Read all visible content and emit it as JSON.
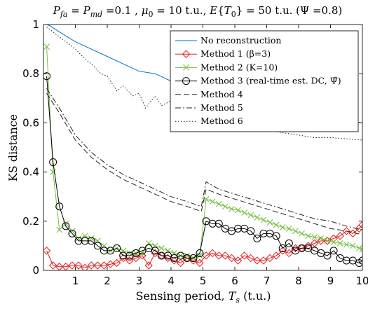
{
  "chart_data": {
    "type": "line",
    "title": "P_fa = P_md =0.1 , μ_0 = 10 t.u., E{T_0} = 50 t.u. (Ψ =0.8)",
    "xlabel": "Sensing period, T_s (t.u.)",
    "ylabel": "KS distance",
    "xlim": [
      0,
      10
    ],
    "ylim": [
      0,
      1
    ],
    "xticks": [
      1,
      2,
      3,
      4,
      5,
      6,
      7,
      8,
      9,
      10
    ],
    "xtick_labels": [
      "1",
      "2",
      "3",
      "4",
      "5",
      "6",
      "7",
      "8",
      "9",
      "10"
    ],
    "yticks": [
      0,
      0.2,
      0.4,
      0.6,
      0.8,
      1
    ],
    "ytick_labels": [
      "0",
      "0.2",
      "0.4",
      "0.6",
      "0.8",
      "1"
    ],
    "grid": false,
    "legend_position": "top-right",
    "series": [
      {
        "name": "No reconstruction",
        "color": "#0072BD",
        "dash": "solid",
        "marker": "none",
        "x": [
          0.1,
          0.2,
          0.5,
          1.0,
          1.5,
          2.0,
          2.5,
          3.0,
          3.5,
          4.0,
          4.2,
          4.5,
          5.0,
          5.5,
          6.0,
          6.5,
          7.0,
          7.5,
          8.0,
          8.5,
          9.0,
          9.5,
          10.0
        ],
        "y": [
          1.0,
          0.995,
          0.97,
          0.93,
          0.9,
          0.87,
          0.84,
          0.81,
          0.8,
          0.77,
          0.76,
          0.73,
          0.7,
          0.69,
          0.68,
          0.67,
          0.66,
          0.65,
          0.64,
          0.63,
          0.62,
          0.61,
          0.6
        ]
      },
      {
        "name": "Method 1 (β=3)",
        "color": "#E31A1C",
        "dash": "solid",
        "marker": "diamond",
        "x": [
          0.1,
          0.3,
          0.5,
          0.7,
          0.9,
          1.1,
          1.3,
          1.5,
          1.7,
          1.9,
          2.1,
          2.3,
          2.5,
          2.7,
          2.9,
          3.1,
          3.3,
          3.5,
          3.7,
          3.9,
          4.1,
          4.3,
          4.5,
          4.7,
          4.9,
          5.1,
          5.3,
          5.5,
          5.7,
          5.9,
          6.1,
          6.3,
          6.5,
          6.7,
          6.9,
          7.1,
          7.3,
          7.5,
          7.7,
          7.9,
          8.1,
          8.3,
          8.5,
          8.7,
          8.9,
          9.1,
          9.3,
          9.5,
          9.7,
          9.9,
          10.0
        ],
        "y": [
          0.08,
          0.02,
          0.015,
          0.015,
          0.02,
          0.02,
          0.01,
          0.02,
          0.02,
          0.02,
          0.025,
          0.03,
          0.05,
          0.04,
          0.05,
          0.06,
          0.02,
          0.07,
          0.06,
          0.05,
          0.04,
          0.03,
          0.05,
          0.04,
          0.03,
          0.06,
          0.07,
          0.06,
          0.06,
          0.05,
          0.04,
          0.06,
          0.05,
          0.04,
          0.04,
          0.05,
          0.06,
          0.08,
          0.07,
          0.09,
          0.09,
          0.1,
          0.11,
          0.12,
          0.12,
          0.13,
          0.14,
          0.16,
          0.15,
          0.17,
          0.185
        ]
      },
      {
        "name": "Method 2 (K=10)",
        "color": "#77C043",
        "dash": "solid",
        "marker": "x",
        "x": [
          0.1,
          0.3,
          0.5,
          0.7,
          0.9,
          1.1,
          1.3,
          1.5,
          1.7,
          1.9,
          2.1,
          2.3,
          2.5,
          2.7,
          2.9,
          3.1,
          3.3,
          3.5,
          3.7,
          3.9,
          4.1,
          4.3,
          4.5,
          4.7,
          4.9,
          5.1,
          5.3,
          5.5,
          5.7,
          5.9,
          6.1,
          6.3,
          6.5,
          6.7,
          6.9,
          7.1,
          7.3,
          7.5,
          7.7,
          7.9,
          8.1,
          8.3,
          8.5,
          8.7,
          8.9,
          9.1,
          9.3,
          9.5,
          9.7,
          9.9,
          10.0
        ],
        "y": [
          0.91,
          0.4,
          0.165,
          0.19,
          0.16,
          0.13,
          0.14,
          0.13,
          0.12,
          0.1,
          0.08,
          0.09,
          0.08,
          0.07,
          0.07,
          0.07,
          0.11,
          0.1,
          0.09,
          0.08,
          0.07,
          0.06,
          0.06,
          0.05,
          0.06,
          0.29,
          0.28,
          0.27,
          0.26,
          0.25,
          0.245,
          0.235,
          0.225,
          0.215,
          0.205,
          0.195,
          0.185,
          0.175,
          0.17,
          0.16,
          0.15,
          0.14,
          0.135,
          0.13,
          0.12,
          0.115,
          0.11,
          0.105,
          0.1,
          0.09,
          0.085
        ]
      },
      {
        "name": "Method 3 (real-time est. DC, Ψ̂)",
        "color": "#000000",
        "dash": "solid",
        "marker": "circle",
        "x": [
          0.1,
          0.3,
          0.5,
          0.7,
          0.9,
          1.1,
          1.3,
          1.5,
          1.7,
          1.9,
          2.1,
          2.3,
          2.5,
          2.7,
          2.9,
          3.1,
          3.3,
          3.5,
          3.7,
          3.9,
          4.1,
          4.3,
          4.5,
          4.7,
          4.9,
          5.1,
          5.3,
          5.5,
          5.7,
          5.9,
          6.1,
          6.3,
          6.5,
          6.7,
          6.9,
          7.1,
          7.3,
          7.5,
          7.7,
          7.9,
          8.1,
          8.3,
          8.5,
          8.7,
          8.9,
          9.1,
          9.3,
          9.5,
          9.7,
          9.9,
          10.0
        ],
        "y": [
          0.79,
          0.44,
          0.26,
          0.18,
          0.15,
          0.12,
          0.12,
          0.12,
          0.1,
          0.08,
          0.08,
          0.09,
          0.06,
          0.06,
          0.07,
          0.08,
          0.09,
          0.08,
          0.06,
          0.06,
          0.05,
          0.06,
          0.05,
          0.05,
          0.07,
          0.2,
          0.19,
          0.19,
          0.17,
          0.16,
          0.17,
          0.17,
          0.16,
          0.13,
          0.15,
          0.15,
          0.14,
          0.09,
          0.11,
          0.08,
          0.09,
          0.09,
          0.08,
          0.07,
          0.06,
          0.08,
          0.05,
          0.04,
          0.04,
          0.03,
          0.04
        ]
      },
      {
        "name": "Method 4",
        "color": "#222222",
        "dash": "dashed",
        "marker": "none",
        "x": [
          0.1,
          0.5,
          1.0,
          1.5,
          2.0,
          2.5,
          3.0,
          3.5,
          4.0,
          4.5,
          4.95,
          5.1,
          5.5,
          6.0,
          6.5,
          7.0,
          7.5,
          8.0,
          8.5,
          9.0,
          9.5,
          10.0
        ],
        "y": [
          0.72,
          0.64,
          0.53,
          0.46,
          0.41,
          0.37,
          0.34,
          0.31,
          0.28,
          0.26,
          0.24,
          0.33,
          0.31,
          0.29,
          0.27,
          0.25,
          0.23,
          0.21,
          0.19,
          0.17,
          0.16,
          0.145
        ]
      },
      {
        "name": "Method 5",
        "color": "#222222",
        "dash": "dashdot",
        "marker": "none",
        "x": [
          0.1,
          0.5,
          1.0,
          1.5,
          2.0,
          2.5,
          3.0,
          3.5,
          4.0,
          4.5,
          4.95,
          5.1,
          5.5,
          6.0,
          6.5,
          7.0,
          7.5,
          8.0,
          8.5,
          9.0,
          9.5,
          10.0
        ],
        "y": [
          0.74,
          0.66,
          0.55,
          0.48,
          0.43,
          0.39,
          0.36,
          0.33,
          0.3,
          0.28,
          0.26,
          0.36,
          0.33,
          0.31,
          0.29,
          0.27,
          0.25,
          0.23,
          0.21,
          0.2,
          0.18,
          0.165
        ]
      },
      {
        "name": "Method 6",
        "color": "#222222",
        "dash": "dotted",
        "marker": "none",
        "x": [
          0.1,
          0.5,
          1.0,
          1.3,
          1.5,
          1.8,
          2.0,
          2.3,
          2.5,
          2.8,
          3.0,
          3.2,
          3.5,
          3.7,
          4.0,
          4.3,
          4.5,
          5.0,
          5.5,
          6.0,
          6.5,
          7.0,
          7.5,
          8.0,
          8.5,
          9.0,
          9.5,
          10.0
        ],
        "y": [
          0.99,
          0.95,
          0.9,
          0.86,
          0.84,
          0.8,
          0.79,
          0.73,
          0.75,
          0.71,
          0.72,
          0.66,
          0.71,
          0.67,
          0.69,
          0.66,
          0.66,
          0.62,
          0.6,
          0.59,
          0.58,
          0.57,
          0.56,
          0.55,
          0.54,
          0.54,
          0.535,
          0.53
        ]
      }
    ]
  }
}
